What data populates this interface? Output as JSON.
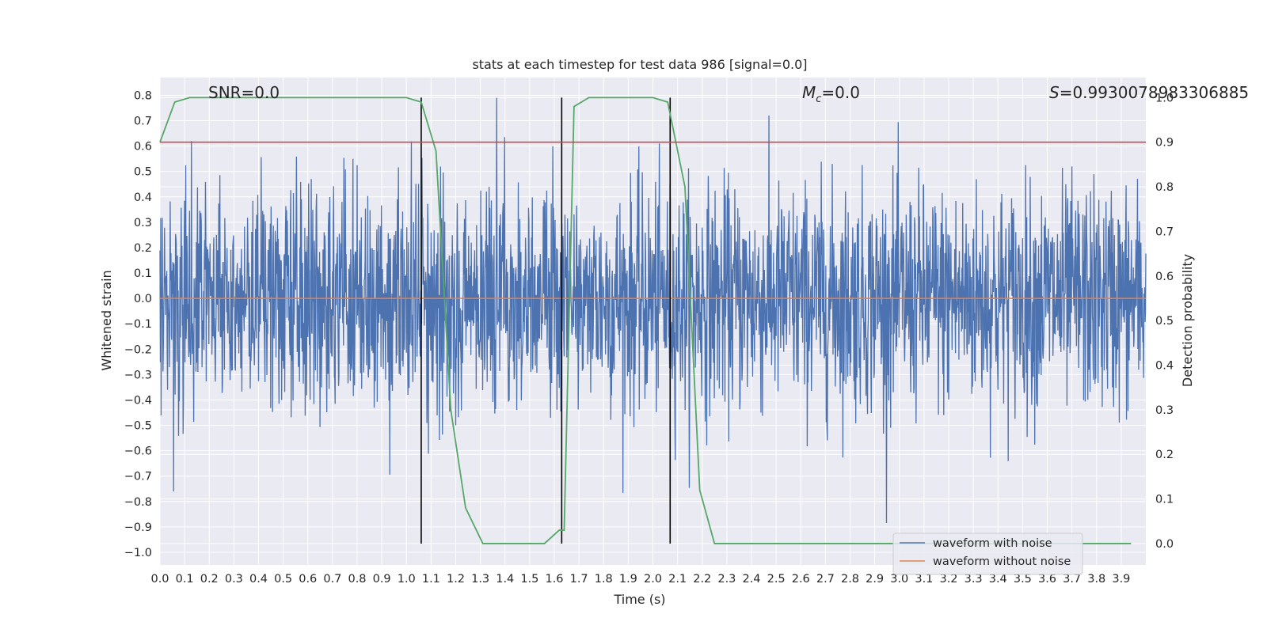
{
  "chart_data": {
    "type": "line",
    "title": "stats at each timestep for test data 986 [signal=0.0]",
    "xlabel": "Time (s)",
    "ylabel": "Whitened strain",
    "ylabel_right": "Detection probability",
    "xlim": [
      0.0,
      4.0
    ],
    "ylim": [
      -1.05,
      0.87
    ],
    "ylim_right": [
      -0.048,
      1.045
    ],
    "x_ticks": [
      0.0,
      0.1,
      0.2,
      0.3,
      0.4,
      0.5,
      0.6,
      0.7,
      0.8,
      0.9,
      1.0,
      1.1,
      1.2,
      1.3,
      1.4,
      1.5,
      1.6,
      1.7,
      1.8,
      1.9,
      2.0,
      2.1,
      2.2,
      2.3,
      2.4,
      2.5,
      2.6,
      2.7,
      2.8,
      2.9,
      3.0,
      3.1,
      3.2,
      3.3,
      3.4,
      3.5,
      3.6,
      3.7,
      3.8,
      3.9
    ],
    "y_ticks": [
      0.8,
      0.7,
      0.6,
      0.5,
      0.4,
      0.3,
      0.2,
      0.1,
      0.0,
      -0.1,
      -0.2,
      -0.3,
      -0.4,
      -0.5,
      -0.6,
      -0.7,
      -0.8,
      -0.9,
      -1.0
    ],
    "y_tick_labels": [
      "0.8",
      "0.7",
      "0.6",
      "0.5",
      "0.4",
      "0.3",
      "0.2",
      "0.1",
      "0.0",
      "−0.1",
      "−0.2",
      "−0.3",
      "−0.4",
      "−0.5",
      "−0.6",
      "−0.7",
      "−0.8",
      "−0.9",
      "−1.0"
    ],
    "y_ticks_right": [
      1.0,
      0.9,
      0.8,
      0.7,
      0.6,
      0.5,
      0.4,
      0.3,
      0.2,
      0.1,
      0.0
    ],
    "y_tick_labels_right": [
      "1.0",
      "0.9",
      "0.8",
      "0.7",
      "0.6",
      "0.5",
      "0.4",
      "0.3",
      "0.2",
      "0.1",
      "0.0"
    ],
    "grid": true,
    "annotations": {
      "snr": "SNR=0.0",
      "mc_symbol": "M",
      "mc_sub": "c",
      "mc_value": "=0.0",
      "s_symbol": "S",
      "s_value": "=0.9930078983306885"
    },
    "legend": {
      "position": "lower right",
      "entries": [
        {
          "label": "waveform with noise",
          "color": "#4c72b0"
        },
        {
          "label": "waveform without noise",
          "color": "#dd8452"
        }
      ]
    },
    "series": [
      {
        "name": "waveform with noise",
        "axis": "left",
        "kind": "noise",
        "x_range": [
          0.0,
          4.0
        ],
        "std": 0.22,
        "min": -1.0,
        "max": 0.79,
        "color": "#4c72b0"
      },
      {
        "name": "waveform without noise",
        "axis": "left",
        "x": [
          0.0,
          4.0
        ],
        "y": [
          0.0,
          0.0
        ],
        "color": "#dd8452"
      },
      {
        "axis": "right",
        "color": "#55a868",
        "x": [
          0.0,
          0.06,
          0.12,
          0.18,
          0.25,
          0.31,
          0.37,
          0.43,
          0.49,
          0.55,
          0.61,
          0.67,
          0.73,
          0.79,
          0.85,
          0.91,
          0.97,
          1.0,
          1.06,
          1.12,
          1.18,
          1.24,
          1.31,
          1.37,
          1.43,
          1.49,
          1.56,
          1.62,
          1.64,
          1.68,
          1.74,
          1.8,
          1.86,
          1.92,
          1.98,
          2.0,
          2.06,
          2.13,
          2.19,
          2.25,
          2.31,
          2.37,
          2.43,
          2.49,
          2.55,
          2.61,
          2.67,
          2.73,
          2.79,
          2.85,
          2.91,
          2.98,
          3.04,
          3.1,
          3.16,
          3.22,
          3.28,
          3.34,
          3.4,
          3.46,
          3.52,
          3.58,
          3.64,
          3.7,
          3.76,
          3.83,
          3.89,
          3.94
        ],
        "y": [
          0.9,
          0.99,
          1.0,
          1.0,
          1.0,
          1.0,
          1.0,
          1.0,
          1.0,
          1.0,
          1.0,
          1.0,
          1.0,
          1.0,
          1.0,
          1.0,
          1.0,
          1.0,
          0.99,
          0.88,
          0.3,
          0.08,
          0.0,
          0.0,
          0.0,
          0.0,
          0.0,
          0.03,
          0.03,
          0.98,
          1.0,
          1.0,
          1.0,
          1.0,
          1.0,
          1.0,
          0.99,
          0.8,
          0.12,
          0.0,
          0.0,
          0.0,
          0.0,
          0.0,
          0.0,
          0.0,
          0.0,
          0.0,
          0.0,
          0.0,
          0.0,
          0.0,
          0.0,
          0.0,
          0.0,
          0.0,
          0.0,
          0.0,
          0.0,
          0.0,
          0.0,
          0.0,
          0.0,
          0.0,
          0.0,
          0.0,
          0.0,
          0.0
        ]
      },
      {
        "axis": "right",
        "kind": "hline",
        "y": 0.9,
        "color": "#c44e52"
      }
    ],
    "vlines": [
      1.06,
      1.63,
      2.07
    ],
    "vline_color": "#000000",
    "colors": {
      "background": "#eaeaf2",
      "grid": "#ffffff"
    }
  }
}
